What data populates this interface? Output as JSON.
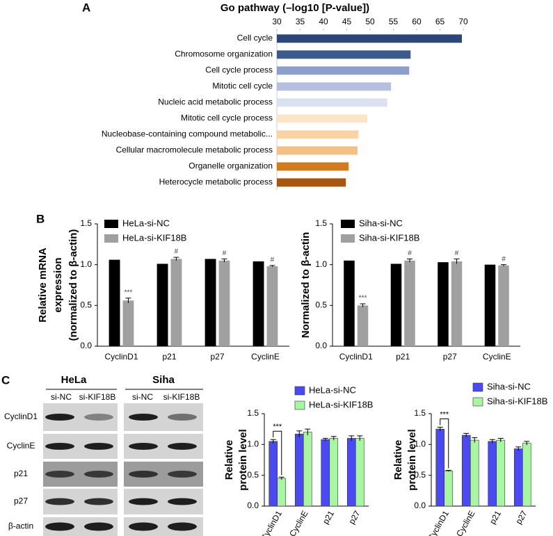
{
  "figure": {
    "panel_labels": [
      "A",
      "B",
      "C"
    ]
  },
  "blot": {
    "groups": [
      "HeLa",
      "Siha"
    ],
    "lanes": [
      "si-NC",
      "si-KIF18B",
      "si-NC",
      "si-KIF18B"
    ],
    "rows": [
      "CyclinD1",
      "CyclinE",
      "p21",
      "p27",
      "β-actin"
    ]
  },
  "chart_data": [
    {
      "type": "barh",
      "title": "Go pathway (–log10 [P-value])",
      "categories": [
        "Cell cycle",
        "Chromosome organization",
        "Cell cycle process",
        "Mitotic cell cycle",
        "Nucleic acid metabolic process",
        "Mitotic cell cycle process",
        "Nucleobase-containing compound metabolic...",
        "Cellular macromolecule metabolic process",
        "Organelle organization",
        "Heterocycle metabolic process"
      ],
      "values": [
        69.7,
        58.7,
        58.4,
        54.5,
        53.7,
        49.4,
        47.5,
        47.3,
        45.4,
        44.8
      ],
      "colors": [
        "#2c4677",
        "#3d5a8c",
        "#8c9fcc",
        "#b5bfe0",
        "#dbe1f0",
        "#fce4c9",
        "#f9d3a7",
        "#f2bf84",
        "#d07b20",
        "#a8560f"
      ],
      "xlim": [
        30,
        70
      ],
      "xticks": [
        30,
        35,
        40,
        45,
        50,
        55,
        60,
        65,
        70
      ]
    },
    {
      "type": "bar",
      "ylabel": [
        "Relative mRNA",
        "expression",
        "(normalized to β-actin)"
      ],
      "categories": [
        "CyclinD1",
        "p21",
        "p27",
        "CyclinE"
      ],
      "series": [
        {
          "name": "HeLa-si-NC",
          "color": "#000000",
          "values": [
            1.06,
            1.01,
            1.07,
            1.04
          ]
        },
        {
          "name": "HeLa-si-KIF18B",
          "color": "#a0a0a0",
          "values": [
            0.56,
            1.07,
            1.05,
            0.98
          ],
          "errors": [
            0.03,
            0.02,
            0.02,
            0.01
          ],
          "annotations": [
            "***",
            "#",
            "#",
            "#"
          ]
        }
      ],
      "ylim": [
        0,
        1.5
      ],
      "yticks": [
        {
          "value": 0,
          "label": "0.0"
        },
        {
          "value": 0.5,
          "label": "0.5"
        },
        {
          "value": 1,
          "label": "1.0"
        },
        {
          "value": 1.5,
          "label": "1.5"
        }
      ]
    },
    {
      "type": "bar",
      "ylabel": [
        "Normalized to β-actin"
      ],
      "categories": [
        "CyclinD1",
        "p21",
        "p27",
        "CyclinE"
      ],
      "series": [
        {
          "name": "Siha-si-NC",
          "color": "#000000",
          "values": [
            1.05,
            1.01,
            1.03,
            1.0
          ]
        },
        {
          "name": "Siha-si-KIF18B",
          "color": "#a0a0a0",
          "values": [
            0.5,
            1.05,
            1.04,
            0.99
          ],
          "errors": [
            0.02,
            0.02,
            0.03,
            0.01
          ],
          "annotations": [
            "***",
            "#",
            "#",
            "#"
          ]
        }
      ],
      "ylim": [
        0,
        1.5
      ],
      "yticks": [
        {
          "value": 0,
          "label": "0.0"
        },
        {
          "value": 0.5,
          "label": "0.5"
        },
        {
          "value": 1,
          "label": "1.0"
        },
        {
          "value": 1.5,
          "label": "1.5"
        }
      ]
    },
    {
      "type": "bar",
      "ylabel": [
        "Relative",
        "protein level"
      ],
      "categories": [
        "CyclinD1",
        "CyclinE",
        "p21",
        "p27"
      ],
      "series": [
        {
          "name": "HeLa-si-NC",
          "color": "#4a4af0",
          "values": [
            1.05,
            1.17,
            1.08,
            1.1
          ],
          "errors": [
            0.03,
            0.05,
            0.02,
            0.04
          ]
        },
        {
          "name": "HeLa-si-KIF18B",
          "color": "#a8f5a2",
          "values": [
            0.45,
            1.2,
            1.1,
            1.1
          ],
          "errors": [
            0.02,
            0.05,
            0.03,
            0.04
          ]
        }
      ],
      "annotations": [
        "***",
        null,
        null,
        null
      ],
      "ylim": [
        0,
        1.5
      ],
      "yticks": [
        {
          "value": 0,
          "label": "0.0"
        },
        {
          "value": 0.5,
          "label": "0.5"
        },
        {
          "value": 1,
          "label": "1.0"
        },
        {
          "value": 1.5,
          "label": "1.5"
        }
      ]
    },
    {
      "type": "bar",
      "ylabel": [
        "Relative",
        "protein level"
      ],
      "categories": [
        "CyclinD1",
        "CyclinE",
        "p21",
        "p27"
      ],
      "series": [
        {
          "name": "Siha-si-NC",
          "color": "#4a4af0",
          "values": [
            1.25,
            1.15,
            1.05,
            0.93
          ],
          "errors": [
            0.03,
            0.03,
            0.03,
            0.03
          ]
        },
        {
          "name": "Siha-si-KIF18B",
          "color": "#a8f5a2",
          "values": [
            0.57,
            1.07,
            1.07,
            1.02
          ],
          "errors": [
            0.01,
            0.04,
            0.03,
            0.03
          ]
        }
      ],
      "annotations": [
        "***",
        null,
        null,
        null
      ],
      "ylim": [
        0,
        1.5
      ],
      "yticks": [
        {
          "value": 0,
          "label": "0.0"
        },
        {
          "value": 0.5,
          "label": "0.5"
        },
        {
          "value": 1,
          "label": "1.0"
        },
        {
          "value": 1.5,
          "label": "1.5"
        }
      ]
    }
  ]
}
